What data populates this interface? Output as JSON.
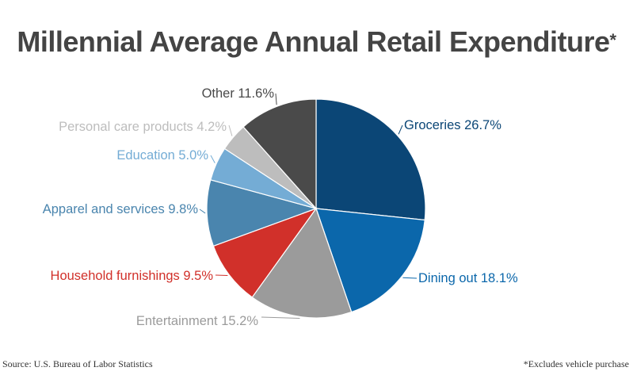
{
  "title": "Millennial Average Annual Retail Expenditure",
  "title_mark": "*",
  "source": "Source: U.S. Bureau of Labor Statistics",
  "footnote": "*Excludes vehicle purchase",
  "chart_data": {
    "type": "pie",
    "title": "Millennial Average Annual Retail Expenditure",
    "start": "top",
    "direction": "clockwise",
    "slices": [
      {
        "label": "Groceries 26.7%",
        "name": "Groceries",
        "value": 26.7,
        "color": "#0b4676"
      },
      {
        "label": "Dining out 18.1%",
        "name": "Dining out",
        "value": 18.1,
        "color": "#0b67ab"
      },
      {
        "label": "Entertainment 15.2%",
        "name": "Entertainment",
        "value": 15.2,
        "color": "#9b9b9b"
      },
      {
        "label": "Household furnishings 9.5%",
        "name": "Household furnishings",
        "value": 9.5,
        "color": "#d1302a"
      },
      {
        "label": "Apparel and services 9.8%",
        "name": "Apparel and services",
        "value": 9.8,
        "color": "#4a85ae"
      },
      {
        "label": "Education 5.0%",
        "name": "Education",
        "value": 5.0,
        "color": "#74acd5"
      },
      {
        "label": "Personal care products 4.2%",
        "name": "Personal care products",
        "value": 4.2,
        "color": "#bdbdbd"
      },
      {
        "label": "Other 11.6%",
        "name": "Other",
        "value": 11.6,
        "color": "#4a4a4a"
      }
    ]
  }
}
